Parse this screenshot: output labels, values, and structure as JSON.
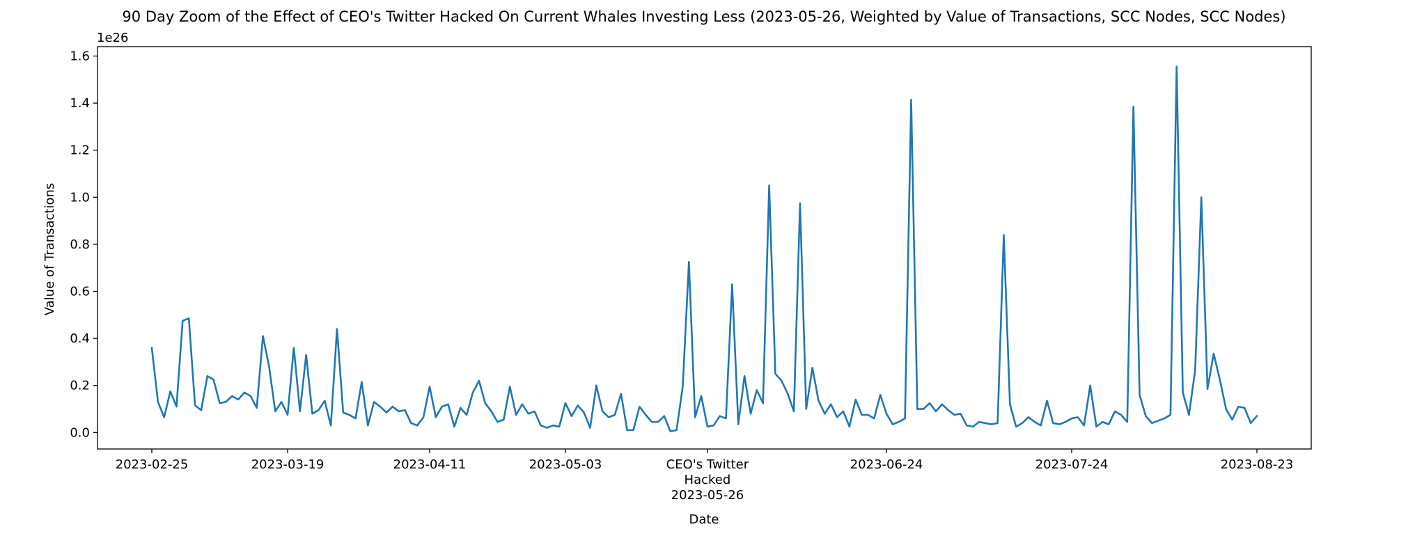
{
  "chart_data": {
    "type": "line",
    "title": "90 Day Zoom of the Effect of CEO's Twitter Hacked On Current Whales Investing Less (2023-05-26, Weighted by Value of Transactions, SCC Nodes, SCC Nodes)",
    "xlabel": "Date",
    "ylabel": "Value of Transactions",
    "y_offset_label": "1e26",
    "y_scale_exponent": 26,
    "ylim": [
      -0.07,
      1.64
    ],
    "yticks": [
      0.0,
      0.2,
      0.4,
      0.6,
      0.8,
      1.0,
      1.2,
      1.4,
      1.6
    ],
    "ytick_labels": [
      "0.0",
      "0.2",
      "0.4",
      "0.6",
      "0.8",
      "1.0",
      "1.2",
      "1.4",
      "1.6"
    ],
    "x_start_date": "2023-02-25",
    "x_end_date": "2023-08-23",
    "xticks": [
      {
        "date": "2023-02-25",
        "label": [
          "2023-02-25"
        ]
      },
      {
        "date": "2023-03-19",
        "label": [
          "2023-03-19"
        ]
      },
      {
        "date": "2023-04-11",
        "label": [
          "2023-04-11"
        ]
      },
      {
        "date": "2023-05-03",
        "label": [
          "2023-05-03"
        ]
      },
      {
        "date": "2023-05-26",
        "label": [
          "CEO's Twitter",
          "Hacked",
          "2023-05-26"
        ]
      },
      {
        "date": "2023-06-24",
        "label": [
          "2023-06-24"
        ]
      },
      {
        "date": "2023-07-24",
        "label": [
          "2023-07-24"
        ]
      },
      {
        "date": "2023-08-23",
        "label": [
          "2023-08-23"
        ]
      }
    ],
    "grid": false,
    "series": [
      {
        "color": "#1f77b4",
        "values": [
          0.36,
          0.13,
          0.065,
          0.175,
          0.11,
          0.475,
          0.485,
          0.115,
          0.095,
          0.24,
          0.225,
          0.125,
          0.13,
          0.155,
          0.14,
          0.17,
          0.155,
          0.105,
          0.41,
          0.28,
          0.09,
          0.13,
          0.075,
          0.36,
          0.09,
          0.33,
          0.08,
          0.095,
          0.135,
          0.03,
          0.44,
          0.085,
          0.075,
          0.06,
          0.215,
          0.03,
          0.13,
          0.11,
          0.085,
          0.11,
          0.09,
          0.095,
          0.04,
          0.03,
          0.065,
          0.195,
          0.065,
          0.11,
          0.12,
          0.025,
          0.105,
          0.075,
          0.17,
          0.22,
          0.125,
          0.09,
          0.045,
          0.055,
          0.195,
          0.075,
          0.12,
          0.08,
          0.09,
          0.03,
          0.02,
          0.03,
          0.025,
          0.125,
          0.07,
          0.115,
          0.085,
          0.02,
          0.2,
          0.09,
          0.065,
          0.075,
          0.165,
          0.01,
          0.01,
          0.11,
          0.075,
          0.045,
          0.045,
          0.07,
          0.005,
          0.01,
          0.195,
          0.725,
          0.065,
          0.155,
          0.025,
          0.03,
          0.07,
          0.06,
          0.63,
          0.035,
          0.24,
          0.08,
          0.18,
          0.125,
          1.05,
          0.25,
          0.22,
          0.165,
          0.09,
          0.975,
          0.1,
          0.275,
          0.135,
          0.08,
          0.12,
          0.065,
          0.09,
          0.025,
          0.14,
          0.075,
          0.075,
          0.06,
          0.16,
          0.08,
          0.035,
          0.045,
          0.06,
          1.415,
          0.1,
          0.1,
          0.125,
          0.09,
          0.12,
          0.095,
          0.075,
          0.08,
          0.03,
          0.025,
          0.045,
          0.04,
          0.035,
          0.04,
          0.84,
          0.12,
          0.025,
          0.04,
          0.065,
          0.045,
          0.03,
          0.135,
          0.04,
          0.035,
          0.045,
          0.06,
          0.065,
          0.03,
          0.2,
          0.025,
          0.045,
          0.035,
          0.09,
          0.075,
          0.045,
          1.385,
          0.16,
          0.07,
          0.04,
          0.05,
          0.06,
          0.075,
          1.555,
          0.17,
          0.075,
          0.265,
          1.0,
          0.185,
          0.335,
          0.225,
          0.1,
          0.055,
          0.11,
          0.105,
          0.04,
          0.07
        ]
      }
    ],
    "annotation": {
      "date": "2023-05-26",
      "text": "CEO's Twitter Hacked"
    }
  }
}
